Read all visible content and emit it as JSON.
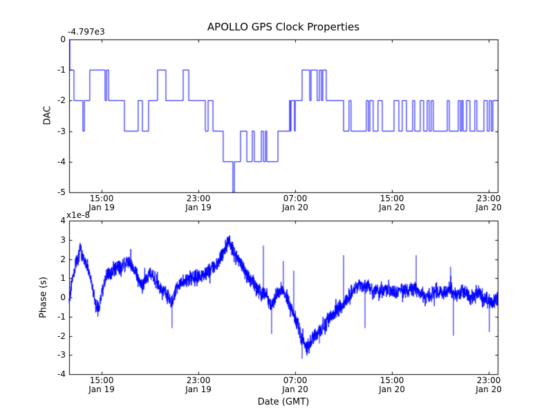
{
  "figure": {
    "title": "APOLLO GPS Clock Properties",
    "background_color": "#ffffff",
    "line_color": "#0000ff",
    "axes_color": "#000000",
    "text_color": "#000000"
  },
  "chart_data": [
    {
      "type": "line",
      "subtype": "step",
      "title": "APOLLO GPS Clock Properties",
      "ylabel": "DAC",
      "xlabel": "",
      "y_offset_text": "-4.797e3",
      "ylim": [
        -5,
        0
      ],
      "yticks": [
        0,
        -1,
        -2,
        -3,
        -4,
        -5
      ],
      "x_hours_range": [
        0,
        35.43
      ],
      "xtick_hours": [
        2.69,
        10.69,
        18.69,
        26.69,
        34.69
      ],
      "xtick_labels": [
        [
          "15:00",
          "Jan 19"
        ],
        [
          "23:00",
          "Jan 19"
        ],
        [
          "07:00",
          "Jan 20"
        ],
        [
          "15:00",
          "Jan 20"
        ],
        [
          "23:00",
          "Jan 20"
        ]
      ],
      "legend": null,
      "grid": false,
      "steps": [
        [
          0,
          0
        ],
        [
          0.06,
          -1
        ],
        [
          0.4,
          -2
        ],
        [
          1.14,
          -3
        ],
        [
          1.26,
          -2
        ],
        [
          1.71,
          -1
        ],
        [
          2.97,
          -2
        ],
        [
          3.09,
          -1
        ],
        [
          3.26,
          -2
        ],
        [
          4.57,
          -3
        ],
        [
          5.71,
          -2
        ],
        [
          6.06,
          -3
        ],
        [
          6.57,
          -2
        ],
        [
          7.31,
          -1
        ],
        [
          8.0,
          -2
        ],
        [
          9.43,
          -1
        ],
        [
          9.89,
          -2
        ],
        [
          11.26,
          -3
        ],
        [
          11.49,
          -2
        ],
        [
          11.89,
          -3
        ],
        [
          12.74,
          -4
        ],
        [
          13.54,
          -5
        ],
        [
          13.66,
          -4
        ],
        [
          14.17,
          -3
        ],
        [
          14.69,
          -4
        ],
        [
          15.14,
          -3
        ],
        [
          15.31,
          -4
        ],
        [
          15.89,
          -3
        ],
        [
          16.06,
          -4
        ],
        [
          16.23,
          -3
        ],
        [
          16.34,
          -4
        ],
        [
          17.26,
          -3
        ],
        [
          18.23,
          -2
        ],
        [
          18.29,
          -3
        ],
        [
          18.34,
          -2
        ],
        [
          18.63,
          -3
        ],
        [
          18.69,
          -2
        ],
        [
          19.26,
          -1
        ],
        [
          19.89,
          -2
        ],
        [
          20.0,
          -1
        ],
        [
          20.51,
          -2
        ],
        [
          20.69,
          -1
        ],
        [
          20.86,
          -2
        ],
        [
          20.97,
          -1
        ],
        [
          21.26,
          -2
        ],
        [
          22.69,
          -3
        ],
        [
          23.14,
          -2
        ],
        [
          23.31,
          -3
        ],
        [
          24.57,
          -2
        ],
        [
          24.74,
          -3
        ],
        [
          24.86,
          -2
        ],
        [
          25.14,
          -3
        ],
        [
          25.54,
          -2
        ],
        [
          25.89,
          -3
        ],
        [
          26.86,
          -2
        ],
        [
          27.26,
          -3
        ],
        [
          27.54,
          -2
        ],
        [
          27.89,
          -3
        ],
        [
          28.4,
          -2
        ],
        [
          28.57,
          -3
        ],
        [
          29.03,
          -2
        ],
        [
          29.31,
          -3
        ],
        [
          29.6,
          -2
        ],
        [
          29.77,
          -3
        ],
        [
          29.94,
          -2
        ],
        [
          30.11,
          -3
        ],
        [
          31.26,
          -2
        ],
        [
          31.43,
          -3
        ],
        [
          32.17,
          -2
        ],
        [
          32.34,
          -3
        ],
        [
          32.46,
          -2
        ],
        [
          32.57,
          -3
        ],
        [
          32.86,
          -2
        ],
        [
          33.14,
          -3
        ],
        [
          33.54,
          -2
        ],
        [
          33.71,
          -3
        ],
        [
          34.29,
          -2
        ],
        [
          34.57,
          -3
        ],
        [
          34.74,
          -2
        ],
        [
          34.91,
          -3
        ],
        [
          35.03,
          -2
        ],
        [
          35.43,
          -2
        ]
      ]
    },
    {
      "type": "line",
      "subtype": "noisy",
      "ylabel": "Phase (s)",
      "xlabel": "Date (GMT)",
      "y_multiplier_text": "x1e-8",
      "ylim": [
        -4,
        4
      ],
      "yticks": [
        4,
        3,
        2,
        1,
        0,
        -1,
        -2,
        -3,
        -4
      ],
      "x_hours_range": [
        0,
        35.43
      ],
      "xtick_hours": [
        2.69,
        10.69,
        18.69,
        26.69,
        34.69
      ],
      "xtick_labels": [
        [
          "15:00",
          "Jan 19"
        ],
        [
          "23:00",
          "Jan 19"
        ],
        [
          "07:00",
          "Jan 20"
        ],
        [
          "15:00",
          "Jan 20"
        ],
        [
          "23:00",
          "Jan 20"
        ]
      ],
      "legend": null,
      "grid": false,
      "noise_amplitude": 0.22,
      "mean_anchors": [
        [
          0,
          -0.2
        ],
        [
          0.17,
          0.6
        ],
        [
          0.46,
          1.5
        ],
        [
          0.74,
          2.2
        ],
        [
          0.97,
          2.4
        ],
        [
          1.37,
          1.8
        ],
        [
          1.77,
          1.0
        ],
        [
          2.17,
          -0.3
        ],
        [
          2.46,
          -0.6
        ],
        [
          2.69,
          0.2
        ],
        [
          3.09,
          1.0
        ],
        [
          3.43,
          1.3
        ],
        [
          3.89,
          1.6
        ],
        [
          4.29,
          1.5
        ],
        [
          4.74,
          1.9
        ],
        [
          5.14,
          1.7
        ],
        [
          5.49,
          1.4
        ],
        [
          5.89,
          0.6
        ],
        [
          6.29,
          0.8
        ],
        [
          6.69,
          1.3
        ],
        [
          7.09,
          0.9
        ],
        [
          7.54,
          0.5
        ],
        [
          8.0,
          0.2
        ],
        [
          8.51,
          -0.3
        ],
        [
          8.91,
          0.6
        ],
        [
          9.43,
          0.8
        ],
        [
          10.0,
          1.0
        ],
        [
          10.57,
          1.0
        ],
        [
          11.14,
          1.2
        ],
        [
          11.71,
          1.5
        ],
        [
          12.29,
          1.8
        ],
        [
          12.74,
          2.3
        ],
        [
          13.14,
          3.0
        ],
        [
          13.49,
          2.5
        ],
        [
          13.89,
          2.1
        ],
        [
          14.29,
          1.6
        ],
        [
          14.74,
          1.1
        ],
        [
          15.14,
          0.8
        ],
        [
          15.54,
          0.4
        ],
        [
          15.89,
          0.3
        ],
        [
          16.29,
          0.1
        ],
        [
          16.74,
          -0.4
        ],
        [
          17.14,
          0.2
        ],
        [
          17.6,
          0.5
        ],
        [
          18.0,
          -0.1
        ],
        [
          18.34,
          -0.5
        ],
        [
          18.74,
          -1.2
        ],
        [
          19.09,
          -1.9
        ],
        [
          19.43,
          -2.3
        ],
        [
          19.71,
          -2.6
        ],
        [
          20.11,
          -2.1
        ],
        [
          20.57,
          -1.8
        ],
        [
          21.03,
          -1.5
        ],
        [
          21.49,
          -1.1
        ],
        [
          21.94,
          -0.8
        ],
        [
          22.4,
          -0.5
        ],
        [
          22.86,
          -0.2
        ],
        [
          23.31,
          0.2
        ],
        [
          23.77,
          0.5
        ],
        [
          24.23,
          0.7
        ],
        [
          24.69,
          0.6
        ],
        [
          25.14,
          0.4
        ],
        [
          25.71,
          0.3
        ],
        [
          26.29,
          0.5
        ],
        [
          26.86,
          0.2
        ],
        [
          27.43,
          0.4
        ],
        [
          28.0,
          0.3
        ],
        [
          28.57,
          0.5
        ],
        [
          29.14,
          0.2
        ],
        [
          29.71,
          0.0
        ],
        [
          30.29,
          0.3
        ],
        [
          30.86,
          0.2
        ],
        [
          31.43,
          0.4
        ],
        [
          32.0,
          0.1
        ],
        [
          32.57,
          0.3
        ],
        [
          33.14,
          0.0
        ],
        [
          33.71,
          0.2
        ],
        [
          34.29,
          -0.1
        ],
        [
          34.86,
          -0.3
        ],
        [
          35.37,
          0.0
        ]
      ],
      "spikes": [
        [
          8.51,
          -1.6
        ],
        [
          13.2,
          3.15
        ],
        [
          16.06,
          2.7
        ],
        [
          16.74,
          -1.9
        ],
        [
          17.71,
          1.9
        ],
        [
          18.57,
          1.4
        ],
        [
          19.26,
          -3.2
        ],
        [
          20.69,
          -2.4
        ],
        [
          22.69,
          2.2
        ],
        [
          24.46,
          -1.6
        ],
        [
          28.69,
          2.2
        ],
        [
          31.54,
          1.6
        ],
        [
          31.77,
          -2.0
        ],
        [
          34.74,
          -1.8
        ]
      ]
    }
  ]
}
